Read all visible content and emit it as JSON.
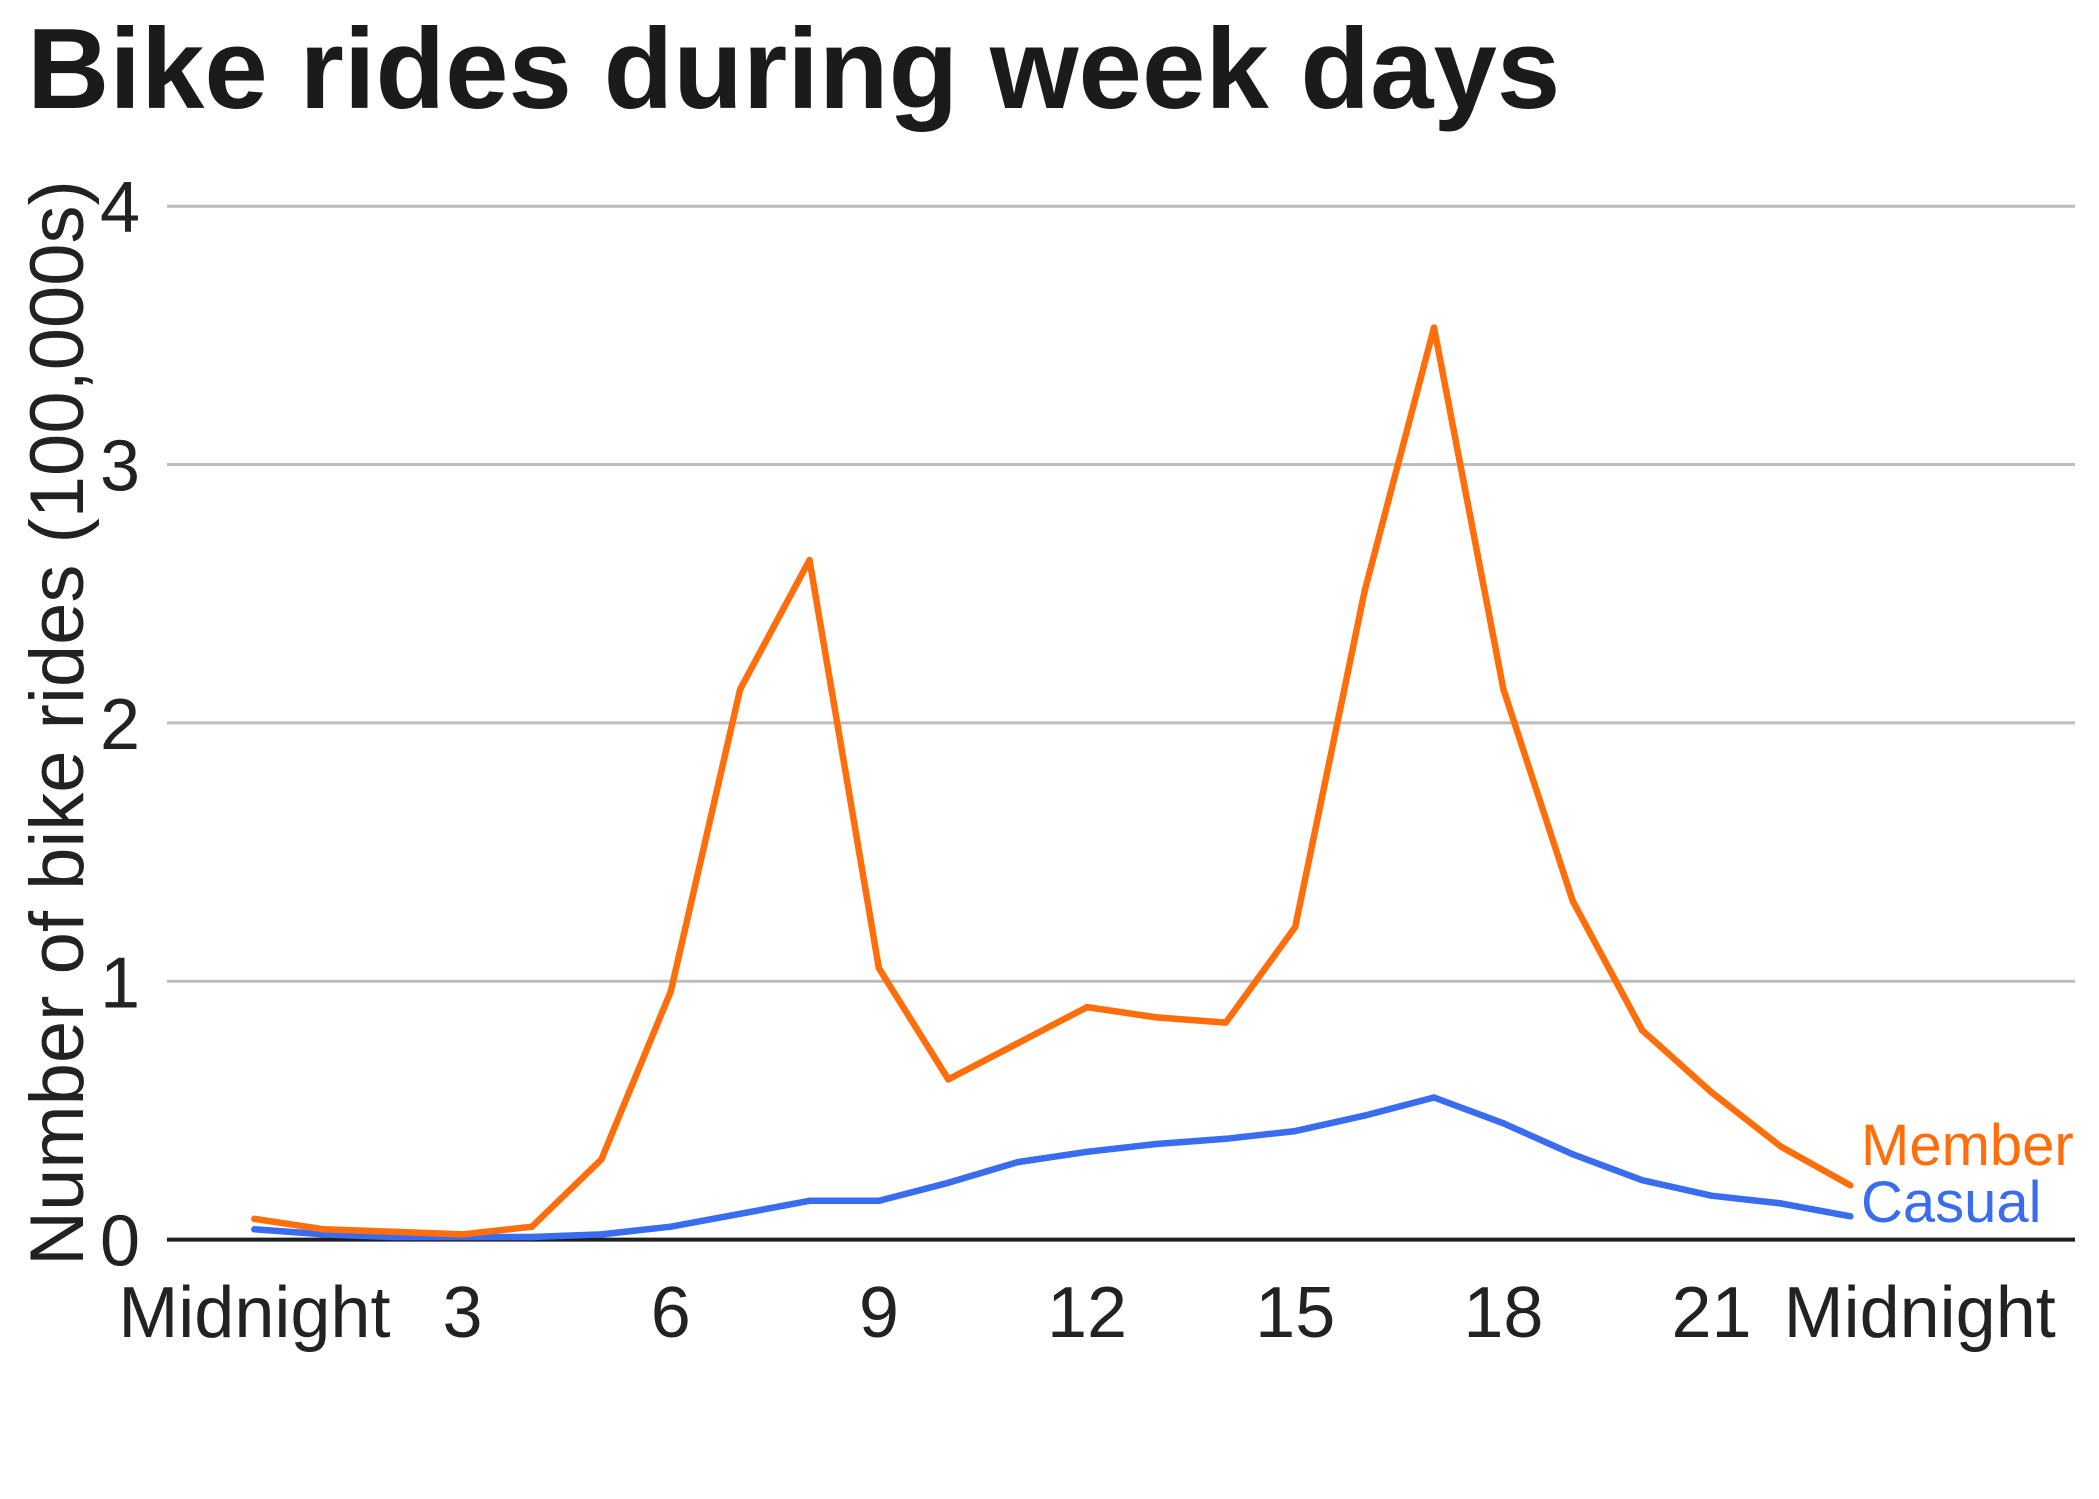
{
  "chart_data": {
    "type": "line",
    "title": "Bike rides during week days",
    "xlabel": "",
    "ylabel": "Number of bike rides (100,000s)",
    "x": [
      0,
      1,
      2,
      3,
      4,
      5,
      6,
      7,
      8,
      9,
      10,
      11,
      12,
      13,
      14,
      15,
      16,
      17,
      18,
      19,
      20,
      21,
      22,
      23
    ],
    "xlim": [
      0,
      24
    ],
    "ylim": [
      0,
      4
    ],
    "x_ticks": [
      0,
      3,
      6,
      9,
      12,
      15,
      18,
      21,
      24
    ],
    "x_tick_labels": [
      "Midnight",
      "3",
      "6",
      "9",
      "12",
      "15",
      "18",
      "21",
      "Midnight"
    ],
    "y_ticks": [
      0,
      1,
      2,
      3,
      4
    ],
    "y_tick_labels": [
      "0",
      "1",
      "2",
      "3",
      "4"
    ],
    "grid": true,
    "legend": "right",
    "series": [
      {
        "name": "Member",
        "color": "#ff6e0b",
        "values": [
          0.08,
          0.04,
          0.03,
          0.02,
          0.05,
          0.31,
          0.96,
          2.13,
          2.63,
          1.05,
          0.62,
          0.76,
          0.9,
          0.86,
          0.84,
          1.21,
          2.51,
          3.53,
          2.13,
          1.31,
          0.81,
          0.57,
          0.36,
          0.21
        ]
      },
      {
        "name": "Casual",
        "color": "#3a6cf0",
        "values": [
          0.04,
          0.02,
          0.01,
          0.01,
          0.01,
          0.02,
          0.05,
          0.1,
          0.15,
          0.15,
          0.22,
          0.3,
          0.34,
          0.37,
          0.39,
          0.42,
          0.48,
          0.55,
          0.45,
          0.33,
          0.23,
          0.17,
          0.14,
          0.09
        ]
      }
    ]
  }
}
